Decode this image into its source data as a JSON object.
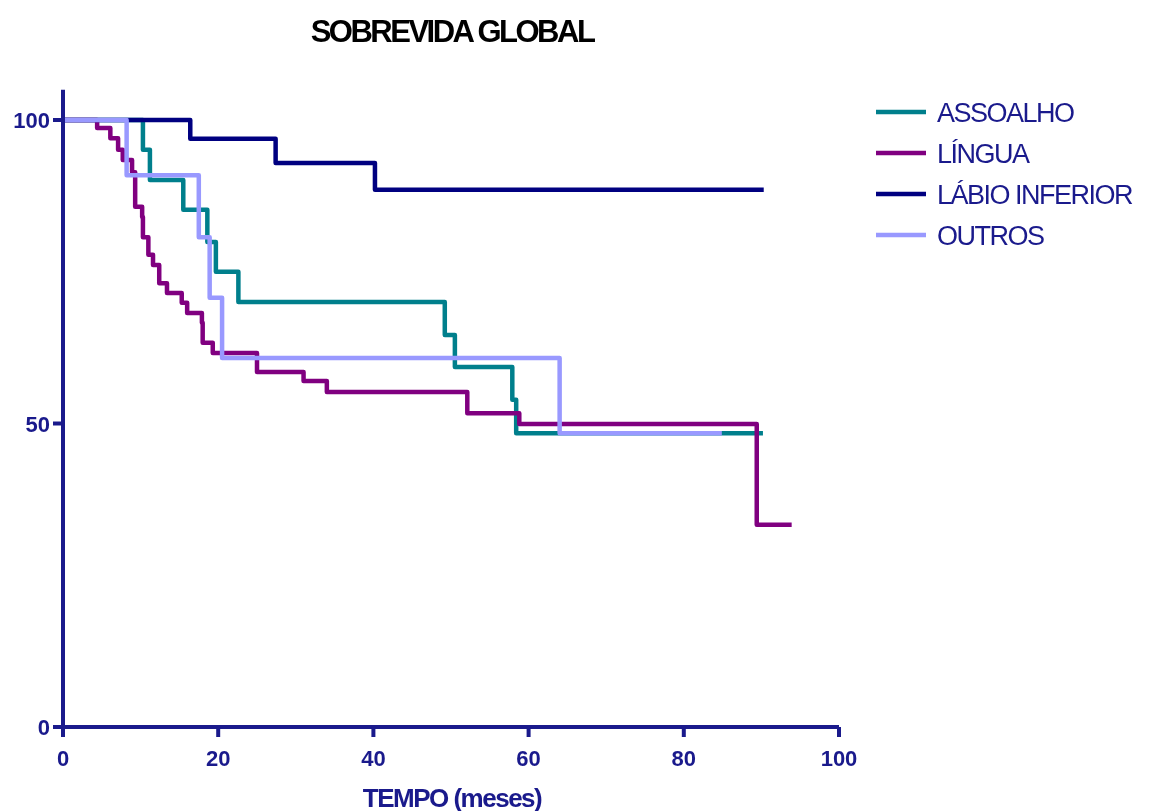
{
  "chart_data": {
    "type": "step",
    "title": "SOBREVIDA GLOBAL",
    "xlabel": "TEMPO (meses)",
    "xlim": [
      0,
      100
    ],
    "xticks": [
      0,
      20,
      40,
      60,
      80,
      100
    ],
    "ylim": [
      0,
      105
    ],
    "yticks": [
      0,
      50,
      100
    ],
    "grid": false,
    "legend": "top right",
    "line_style": "solid",
    "series": [
      {
        "name": "ASSOALHO",
        "color": "#007f8c",
        "x": [
          0,
          10.3,
          11.2,
          15.5,
          18.6,
          19.7,
          22.6,
          49.2,
          50.5,
          57.9,
          58.4,
          90.2
        ],
        "values": [
          100,
          95.1,
          90.1,
          85.2,
          79.9,
          75.0,
          70.0,
          64.6,
          59.3,
          53.9,
          48.4,
          48.4
        ]
      },
      {
        "name": "LÍNGUA",
        "color": "#800080",
        "x": [
          0,
          4.4,
          6.1,
          7.1,
          7.7,
          8.9,
          9.3,
          10.2,
          10.3,
          11.0,
          11.6,
          12.4,
          13.4,
          15.3,
          16.0,
          17.9,
          18.0,
          19.3,
          25.0,
          31.0,
          34.0,
          52.1,
          58.8,
          89.4,
          93.9
        ],
        "values": [
          100,
          98.7,
          97.0,
          95.1,
          93.4,
          91.4,
          85.7,
          84.0,
          80.7,
          77.8,
          76.1,
          73.1,
          71.5,
          69.9,
          68.2,
          66.6,
          63.3,
          61.6,
          58.5,
          57.0,
          55.2,
          51.7,
          49.9,
          33.3,
          33.3
        ]
      },
      {
        "name": "LÁBIO INFERIOR",
        "color": "#000080",
        "x": [
          0,
          16.4,
          27.4,
          40.2,
          90.3
        ],
        "values": [
          100,
          96.9,
          92.9,
          88.5,
          88.5
        ]
      },
      {
        "name": "OUTROS",
        "color": "#9999ff",
        "x": [
          0,
          8.2,
          17.5,
          18.9,
          20.5,
          64.0,
          84.9
        ],
        "values": [
          100,
          90.9,
          80.7,
          70.7,
          60.8,
          48.4,
          48.4
        ]
      }
    ]
  }
}
